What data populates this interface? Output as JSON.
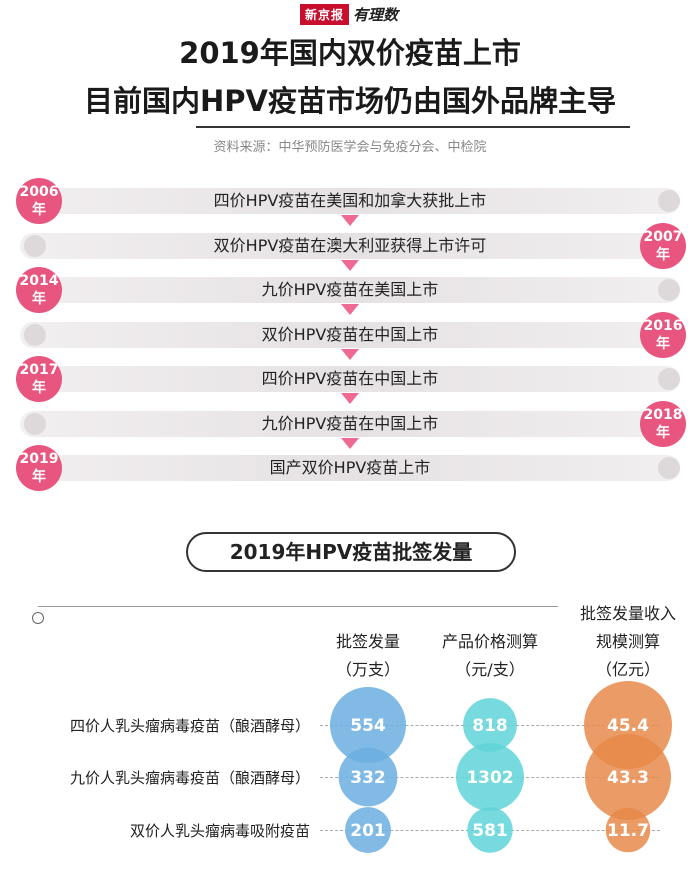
{
  "logo": {
    "brand": "新京报",
    "script": "有理数"
  },
  "title": {
    "line1": "2019年国内双价疫苗上市",
    "line2": "目前国内HPV疫苗市场仍由国外品牌主导"
  },
  "source": "资料来源：中华预防医学会与免疫分会、中检院",
  "timeline": [
    {
      "year": "2006",
      "suffix": "年",
      "side": "left",
      "text": "四价HPV疫苗在美国和加拿大获批上市"
    },
    {
      "year": "2007",
      "suffix": "年",
      "side": "right",
      "text": "双价HPV疫苗在澳大利亚获得上市许可"
    },
    {
      "year": "2014",
      "suffix": "年",
      "side": "left",
      "text": "九价HPV疫苗在美国上市"
    },
    {
      "year": "2016",
      "suffix": "年",
      "side": "right",
      "text": "双价HPV疫苗在中国上市"
    },
    {
      "year": "2017",
      "suffix": "年",
      "side": "left",
      "text": "四价HPV疫苗在中国上市"
    },
    {
      "year": "2018",
      "suffix": "年",
      "side": "right",
      "text": "九价HPV疫苗在中国上市"
    },
    {
      "year": "2019",
      "suffix": "年",
      "side": "left",
      "text": "国产双价HPV疫苗上市"
    }
  ],
  "colors": {
    "pink": "#e8557e",
    "blue": "#6aaee0",
    "teal": "#5fd4d8",
    "orange": "#e8894a"
  },
  "chart_data": {
    "type": "table",
    "title": "2019年HPV疫苗批签发量",
    "columns": [
      {
        "key": "batch",
        "label_lines": [
          "批签发量",
          "（万支）"
        ],
        "color": "#6aaee0"
      },
      {
        "key": "price",
        "label_lines": [
          "产品价格测算",
          "（元/支）"
        ],
        "color": "#5fd4d8"
      },
      {
        "key": "scale",
        "label_lines": [
          "批签发量收入",
          "规模测算",
          "（亿元）"
        ],
        "color": "#e8894a"
      }
    ],
    "rows": [
      {
        "label": "四价人乳头瘤病毒疫苗（酿酒酵母）",
        "batch": 554,
        "price": 818,
        "scale": 45.4
      },
      {
        "label": "九价人乳头瘤病毒疫苗（酿酒酵母）",
        "batch": 332,
        "price": 1302,
        "scale": 43.3
      },
      {
        "label": "双价人乳头瘤病毒吸附疫苗",
        "batch": 201,
        "price": 581,
        "scale": 11.7
      }
    ]
  }
}
